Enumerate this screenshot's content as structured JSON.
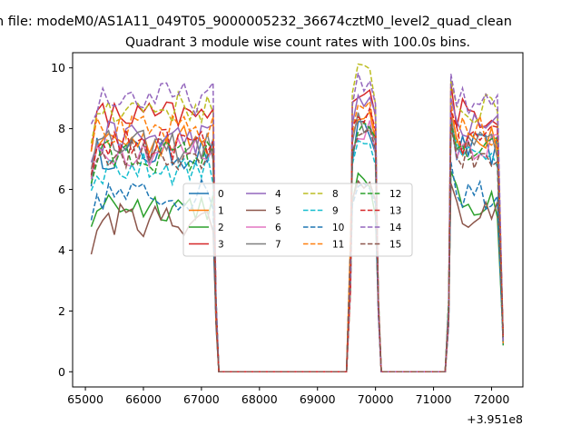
{
  "header": {
    "suptitle": "n file: modeM0/AS1A11_049T05_9000005232_36674cztM0_level2_quad_clean",
    "title": "Quadrant 3 module wise count rates with 100.0s bins.",
    "offset_label": "+3.951e8"
  },
  "chart_data": {
    "type": "line",
    "title": "Quadrant 3 module wise count rates with 100.0s bins.",
    "xlabel": "",
    "ylabel": "",
    "x_offset": 395100000,
    "xlim": [
      64780,
      72540
    ],
    "ylim": [
      -0.5,
      10.5
    ],
    "x_ticks": [
      65000,
      66000,
      67000,
      68000,
      69000,
      70000,
      71000,
      72000
    ],
    "x_tick_labels": [
      "65000",
      "66000",
      "67000",
      "68000",
      "69000",
      "70000",
      "71000",
      "72000"
    ],
    "y_ticks": [
      0,
      2,
      4,
      6,
      8,
      10
    ],
    "y_tick_labels": [
      "0",
      "2",
      "4",
      "6",
      "8",
      "10"
    ],
    "grid": false,
    "legend_placement": "center",
    "legend_columns": 4,
    "segments": [
      {
        "start": 65100,
        "end": 67200
      },
      {
        "start": 69600,
        "end": 70000
      },
      {
        "start": 71300,
        "end": 72200
      }
    ],
    "series": [
      {
        "name": "0",
        "color": "#1f77b4",
        "dash": "solid",
        "level": 7.2,
        "burst": 7.9,
        "tail": 7.3
      },
      {
        "name": "1",
        "color": "#ff7f0e",
        "dash": "solid",
        "level": 7.6,
        "burst": 8.6,
        "tail": 7.6
      },
      {
        "name": "2",
        "color": "#2ca02c",
        "dash": "solid",
        "level": 5.5,
        "burst": 6.2,
        "tail": 5.6
      },
      {
        "name": "3",
        "color": "#d62728",
        "dash": "solid",
        "level": 8.4,
        "burst": 9.4,
        "tail": 8.5
      },
      {
        "name": "4",
        "color": "#9467bd",
        "dash": "solid",
        "level": 7.7,
        "burst": 9.0,
        "tail": 8.0
      },
      {
        "name": "5",
        "color": "#8c564b",
        "dash": "solid",
        "level": 5.0,
        "burst": 6.3,
        "tail": 5.2
      },
      {
        "name": "6",
        "color": "#e377c2",
        "dash": "solid",
        "level": 7.3,
        "burst": 8.0,
        "tail": 7.5
      },
      {
        "name": "7",
        "color": "#7f7f7f",
        "dash": "solid",
        "level": 7.4,
        "burst": 8.2,
        "tail": 7.4
      },
      {
        "name": "8",
        "color": "#bcbd22",
        "dash": "dashed",
        "level": 8.7,
        "burst": 9.8,
        "tail": 8.6
      },
      {
        "name": "9",
        "color": "#17becf",
        "dash": "dashed",
        "level": 6.7,
        "burst": 7.7,
        "tail": 7.0
      },
      {
        "name": "10",
        "color": "#1f77b4",
        "dash": "dashed",
        "level": 5.8,
        "burst": 6.3,
        "tail": 5.9
      },
      {
        "name": "11",
        "color": "#ff7f0e",
        "dash": "dashed",
        "level": 7.9,
        "burst": 8.8,
        "tail": 7.9
      },
      {
        "name": "12",
        "color": "#2ca02c",
        "dash": "dashed",
        "level": 7.1,
        "burst": 8.2,
        "tail": 7.2
      },
      {
        "name": "13",
        "color": "#d62728",
        "dash": "dashed",
        "level": 7.5,
        "burst": 8.5,
        "tail": 7.6
      },
      {
        "name": "14",
        "color": "#9467bd",
        "dash": "dashed",
        "level": 9.0,
        "burst": 9.5,
        "tail": 8.8
      },
      {
        "name": "15",
        "color": "#8c564b",
        "dash": "dashed",
        "level": 7.2,
        "burst": 8.1,
        "tail": 7.1
      }
    ]
  }
}
